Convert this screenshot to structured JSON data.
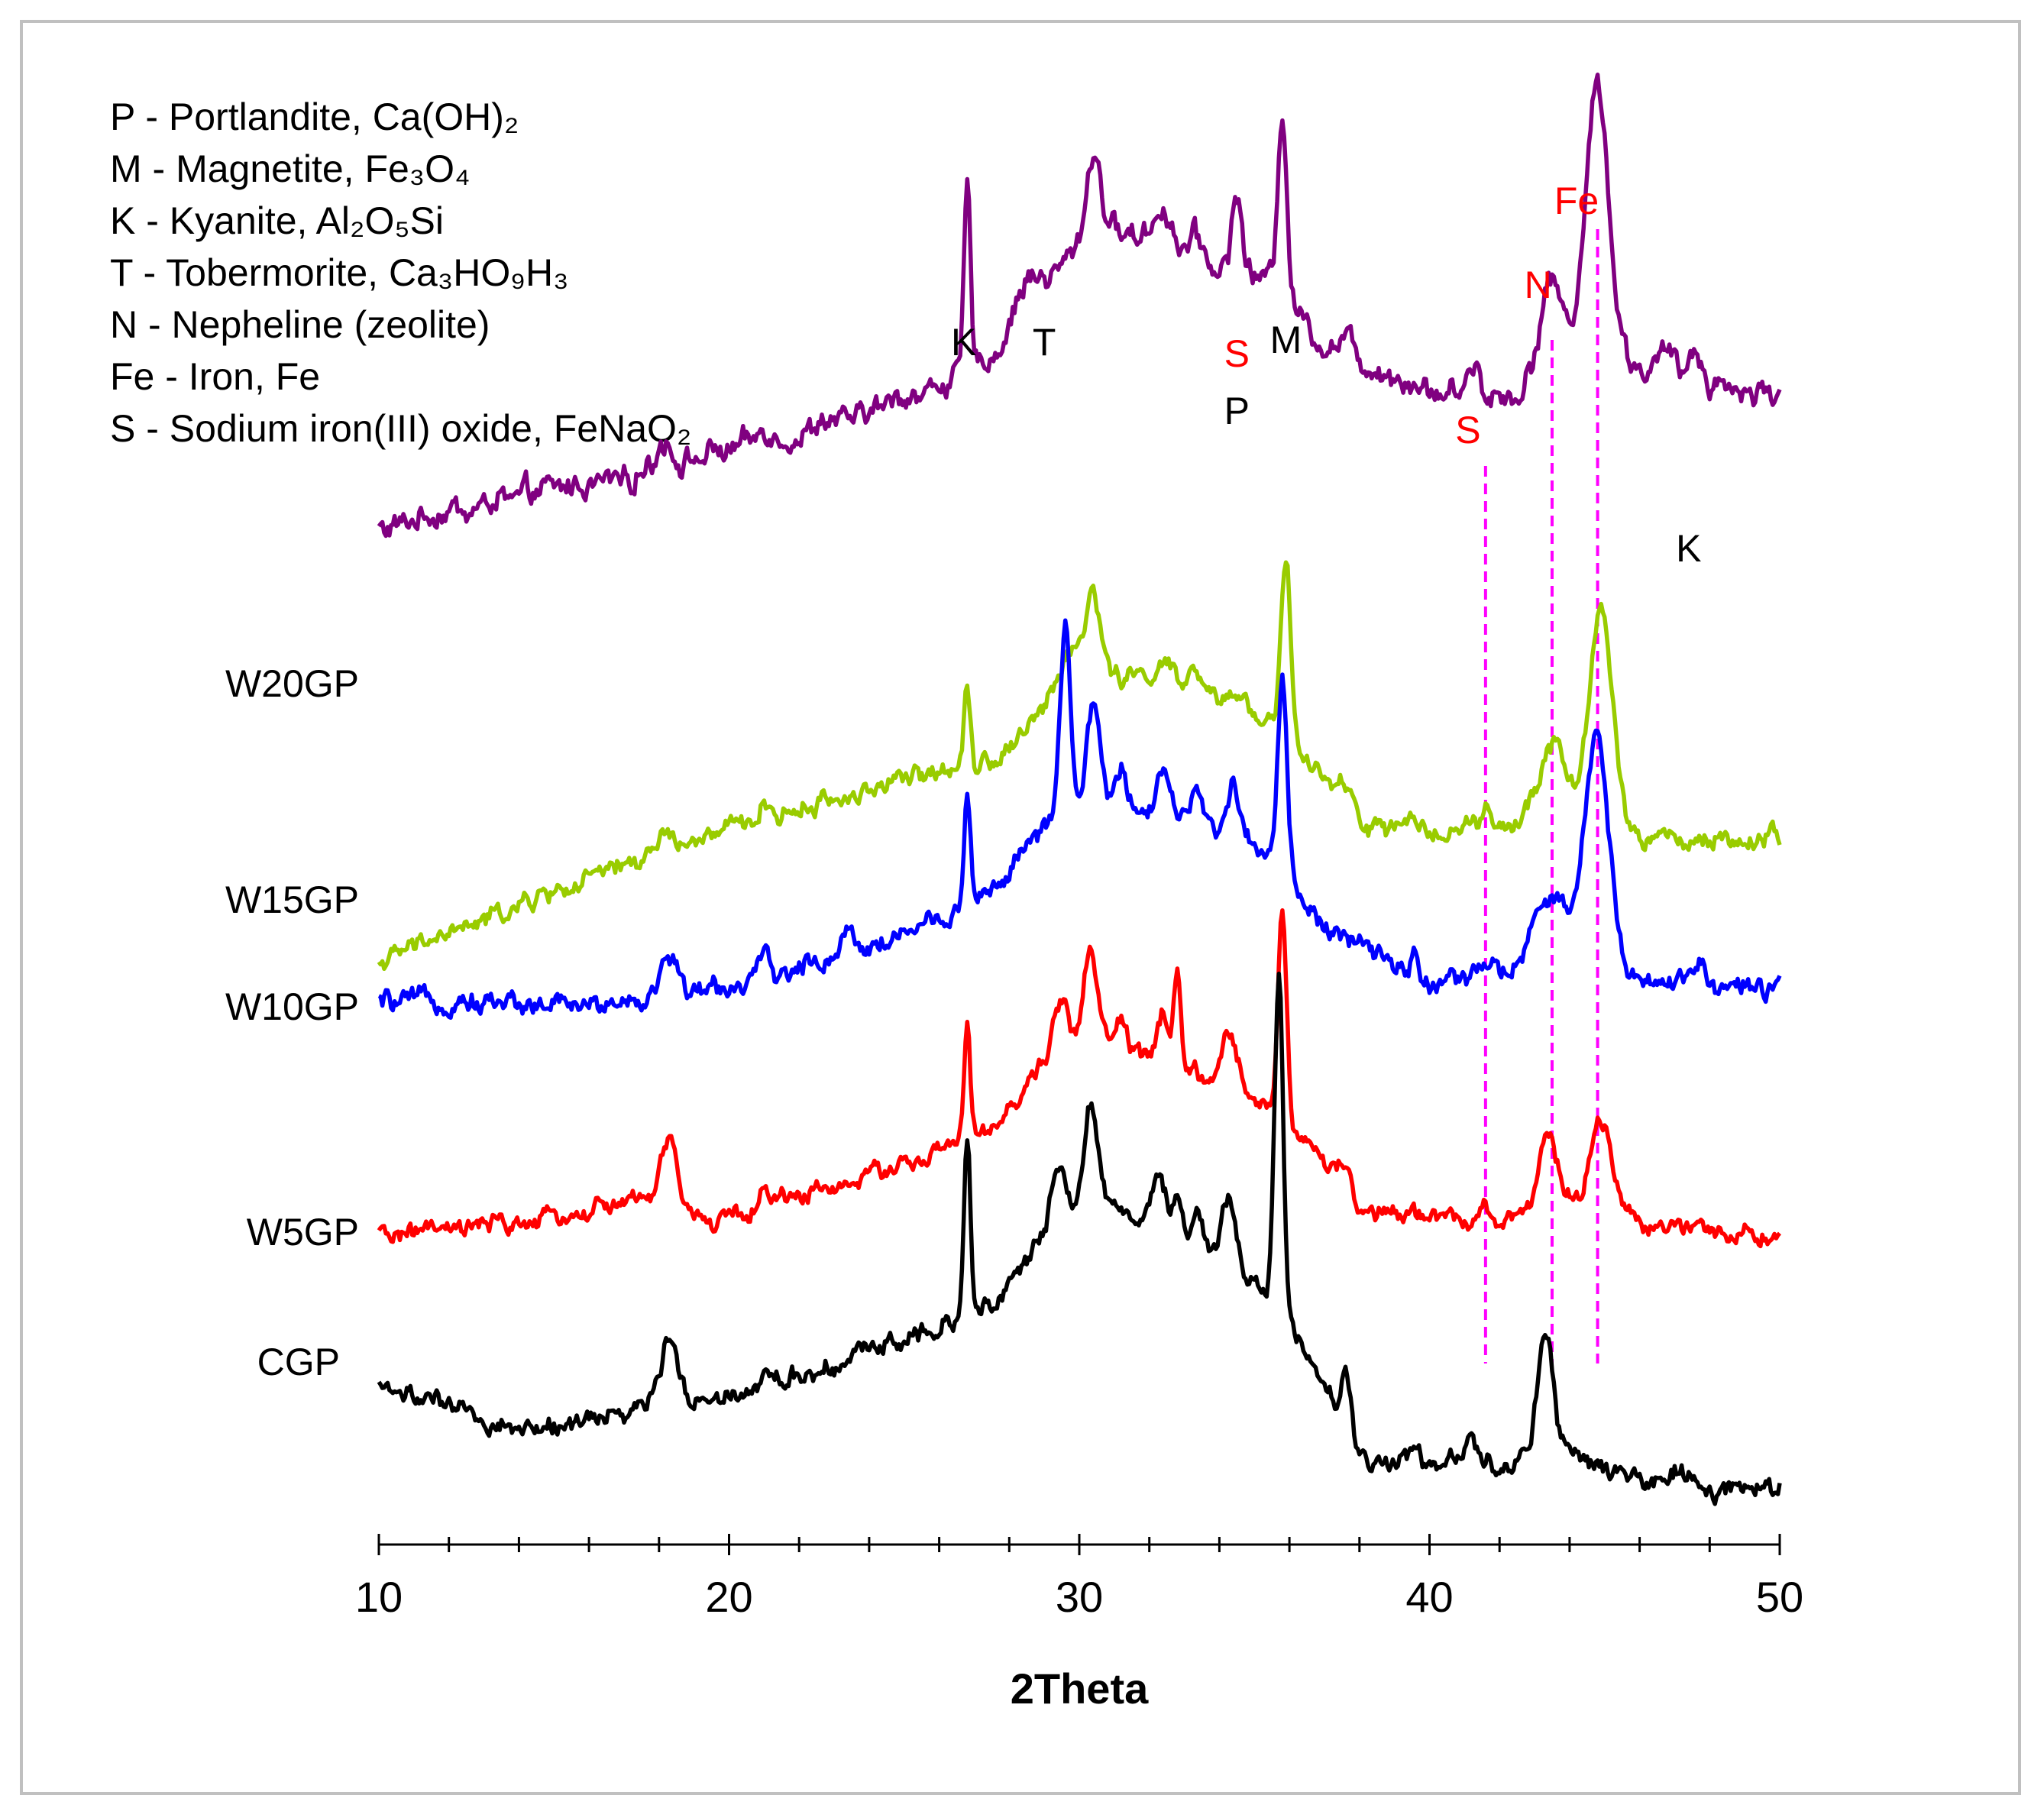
{
  "chart_data": {
    "type": "line",
    "xlabel": "2Theta",
    "ylabel": "",
    "xlim": [
      10,
      50
    ],
    "x_ticks": [
      "10",
      "20",
      "30",
      "40",
      "50"
    ],
    "grid": false,
    "colors": {
      "CGP": "#000000",
      "W5GP": "#ff0000",
      "W10GP": "#0000ff",
      "W15GP": "#99cc00",
      "W20GP": "#800080",
      "reference_lines": "#ff00ff",
      "red_labels": "#ff0000"
    },
    "legend": [
      "P - Portlandite, Ca(OH)₂",
      "M - Magnetite, Fe₃O₄",
      "K - Kyanite, Al₂O₅Si",
      "T - Tobermorite, Ca₃HO₉H₃",
      "N - Nepheline  (zeolite)",
      "Fe - Iron, Fe",
      "S - Sodium iron(III) oxide, FeNaO₂"
    ],
    "series": [
      {
        "name": "W20GP",
        "baseline": [
          [
            10,
            0.65
          ],
          [
            17.8,
            0.88
          ],
          [
            22,
            1.0
          ],
          [
            26,
            1.2
          ],
          [
            27.5,
            1.3
          ],
          [
            29,
            1.6
          ],
          [
            30.6,
            1.82
          ],
          [
            34,
            1.66
          ],
          [
            35.5,
            1.6
          ],
          [
            37,
            1.35
          ],
          [
            40,
            1.18
          ],
          [
            42.5,
            1.16
          ],
          [
            43.3,
            1.42
          ],
          [
            46,
            1.25
          ],
          [
            50,
            1.16
          ]
        ],
        "peaks": [
          [
            18.2,
            0.1,
            0.2
          ],
          [
            21,
            0.06,
            0.15
          ],
          [
            26.8,
            0.7,
            0.09
          ],
          [
            28.5,
            0.1,
            0.3
          ],
          [
            30.4,
            0.3,
            0.2
          ],
          [
            32.4,
            0.14,
            0.25
          ],
          [
            33.3,
            0.1,
            0.2
          ],
          [
            34.5,
            0.3,
            0.14
          ],
          [
            35.8,
            0.73,
            0.13
          ],
          [
            37.6,
            0.1,
            0.2
          ],
          [
            41.3,
            0.1,
            0.15
          ],
          [
            43.5,
            0.2,
            0.25
          ],
          [
            44.8,
            1.04,
            0.32
          ],
          [
            46.8,
            0.1,
            0.2
          ],
          [
            47.6,
            0.1,
            0.2
          ]
        ]
      },
      {
        "name": "W15GP",
        "baseline": [
          [
            10,
            0.0
          ],
          [
            14,
            0.28
          ],
          [
            17.8,
            0.55
          ],
          [
            22,
            0.77
          ],
          [
            26,
            0.97
          ],
          [
            27.5,
            1.02
          ],
          [
            29,
            1.28
          ],
          [
            30.6,
            1.48
          ],
          [
            34,
            1.32
          ],
          [
            35.5,
            1.24
          ],
          [
            37,
            0.9
          ],
          [
            38.2,
            0.68
          ],
          [
            42.5,
            0.68
          ],
          [
            43.3,
            0.9
          ],
          [
            46,
            0.62
          ],
          [
            50,
            0.6
          ]
        ],
        "peaks": [
          [
            18.2,
            0.09,
            0.2
          ],
          [
            21,
            0.07,
            0.15
          ],
          [
            26.8,
            0.42,
            0.09
          ],
          [
            29.8,
            0.2,
            0.3
          ],
          [
            30.4,
            0.4,
            0.18
          ],
          [
            32.4,
            0.14,
            0.25
          ],
          [
            33.3,
            0.1,
            0.2
          ],
          [
            34.5,
            0.1,
            0.14
          ],
          [
            35.9,
            0.9,
            0.13
          ],
          [
            37.6,
            0.1,
            0.2
          ],
          [
            41.6,
            0.08,
            0.12
          ],
          [
            43.6,
            0.25,
            0.25
          ],
          [
            44.9,
            1.06,
            0.32
          ],
          [
            46.8,
            0.04,
            0.2
          ],
          [
            49.8,
            0.07,
            0.1
          ]
        ]
      },
      {
        "name": "W10GP",
        "baseline": [
          [
            10,
            0.0
          ],
          [
            17.5,
            0.0
          ],
          [
            19.5,
            0.05
          ],
          [
            22,
            0.16
          ],
          [
            26,
            0.38
          ],
          [
            27.5,
            0.52
          ],
          [
            29,
            0.82
          ],
          [
            30.6,
            0.98
          ],
          [
            34,
            0.78
          ],
          [
            35.5,
            0.7
          ],
          [
            37,
            0.35
          ],
          [
            40,
            0.08
          ],
          [
            42.5,
            0.16
          ],
          [
            43.3,
            0.5
          ],
          [
            46,
            0.12
          ],
          [
            50,
            0.05
          ]
        ],
        "peaks": [
          [
            18.3,
            0.18,
            0.25
          ],
          [
            21,
            0.08,
            0.15
          ],
          [
            23.4,
            0.1,
            0.2
          ],
          [
            26.8,
            0.5,
            0.09
          ],
          [
            29.6,
            0.85,
            0.14
          ],
          [
            30.4,
            0.4,
            0.18
          ],
          [
            31.2,
            0.15,
            0.14
          ],
          [
            32.4,
            0.22,
            0.18
          ],
          [
            33.3,
            0.14,
            0.2
          ],
          [
            34.4,
            0.3,
            0.16
          ],
          [
            35.8,
            0.88,
            0.13
          ],
          [
            39.6,
            0.12,
            0.12
          ],
          [
            41.4,
            0.06,
            0.2
          ],
          [
            44.8,
            0.96,
            0.32
          ],
          [
            47.7,
            0.12,
            0.15
          ]
        ]
      },
      {
        "name": "W5GP",
        "baseline": [
          [
            10,
            0.0
          ],
          [
            14,
            0.06
          ],
          [
            17.5,
            0.2
          ],
          [
            19.5,
            0.07
          ],
          [
            22,
            0.22
          ],
          [
            26,
            0.45
          ],
          [
            27.5,
            0.55
          ],
          [
            29,
            0.95
          ],
          [
            30.6,
            1.07
          ],
          [
            34,
            0.8
          ],
          [
            35.5,
            0.7
          ],
          [
            37,
            0.4
          ],
          [
            38,
            0.1
          ],
          [
            42.5,
            0.1
          ],
          [
            43.3,
            0.25
          ],
          [
            46,
            0.05
          ],
          [
            50,
            0.0
          ]
        ],
        "peaks": [
          [
            18.3,
            0.38,
            0.25
          ],
          [
            21,
            0.1,
            0.12
          ],
          [
            26.8,
            0.65,
            0.09
          ],
          [
            29.5,
            0.3,
            0.2
          ],
          [
            30.3,
            0.55,
            0.18
          ],
          [
            31.2,
            0.15,
            0.14
          ],
          [
            32.4,
            0.28,
            0.16
          ],
          [
            32.8,
            0.48,
            0.1
          ],
          [
            34.3,
            0.3,
            0.25
          ],
          [
            35.8,
            1.2,
            0.12
          ],
          [
            37.6,
            0.2,
            0.15
          ],
          [
            41.5,
            0.1,
            0.12
          ],
          [
            43.4,
            0.3,
            0.22
          ],
          [
            44.9,
            0.5,
            0.3
          ],
          [
            47,
            0.05,
            0.2
          ]
        ]
      },
      {
        "name": "CGP",
        "baseline": [
          [
            10,
            0.0
          ],
          [
            14,
            -0.22
          ],
          [
            17.5,
            -0.1
          ],
          [
            19.5,
            -0.05
          ],
          [
            22,
            0.05
          ],
          [
            26,
            0.32
          ],
          [
            27.5,
            0.42
          ],
          [
            29,
            0.75
          ],
          [
            30.6,
            0.95
          ],
          [
            34,
            0.65
          ],
          [
            35.5,
            0.45
          ],
          [
            37,
            0.0
          ],
          [
            38.2,
            -0.38
          ],
          [
            42.5,
            -0.38
          ],
          [
            43.3,
            -0.3
          ],
          [
            46,
            -0.48
          ],
          [
            48.3,
            -0.55
          ],
          [
            50,
            -0.52
          ]
        ],
        "peaks": [
          [
            18.3,
            0.32,
            0.25
          ],
          [
            21,
            0.06,
            0.15
          ],
          [
            26.8,
            0.9,
            0.09
          ],
          [
            29.4,
            0.3,
            0.2
          ],
          [
            30.3,
            0.5,
            0.18
          ],
          [
            32.3,
            0.25,
            0.16
          ],
          [
            32.8,
            0.2,
            0.16
          ],
          [
            33.4,
            0.2,
            0.16
          ],
          [
            34.3,
            0.35,
            0.2
          ],
          [
            35.7,
            1.65,
            0.12
          ],
          [
            37.6,
            0.28,
            0.12
          ],
          [
            39.6,
            0.12,
            0.1
          ],
          [
            41.2,
            0.15,
            0.12
          ],
          [
            43.3,
            0.62,
            0.22
          ],
          [
            47.3,
            0.1,
            0.3
          ]
        ]
      }
    ],
    "series_labels": [
      "W20GP",
      "W15GP",
      "W10GP",
      "W5GP",
      "CGP"
    ],
    "peak_labels": [
      {
        "text": "K",
        "x": 26.7,
        "red": false
      },
      {
        "text": "T",
        "x": 29.0,
        "red": false
      },
      {
        "text": "S",
        "x": 34.5,
        "red": true
      },
      {
        "text": "M",
        "x": 35.9,
        "red": false
      },
      {
        "text": "P",
        "x": 34.5,
        "red": false
      },
      {
        "text": "S",
        "x": 41.1,
        "red": true
      },
      {
        "text": "N",
        "x": 43.1,
        "red": true
      },
      {
        "text": "Fe",
        "x": 44.2,
        "red": true
      },
      {
        "text": "K",
        "x": 47.4,
        "red": false
      }
    ],
    "reference_lines": [
      41.6,
      43.5,
      44.8
    ]
  }
}
